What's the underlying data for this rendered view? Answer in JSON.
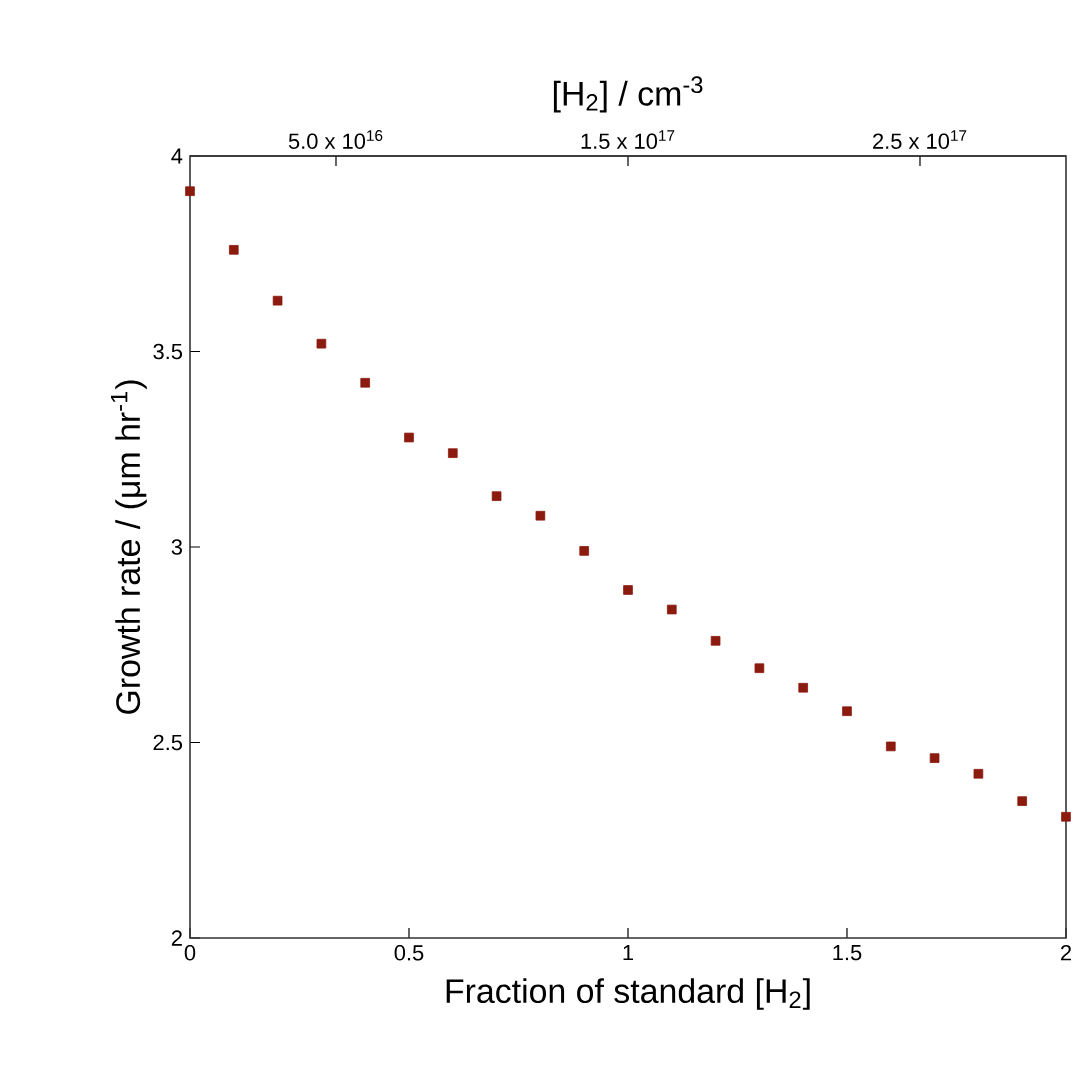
{
  "chart_data": {
    "type": "scatter",
    "xlabel": "Fraction of standard [H$_{2}$]",
    "ylabel": "Growth rate / (μm hr$^{-1}$)",
    "x2label": "[H$_{2}$] / cm$^{-3}$",
    "x": [
      0,
      0.1,
      0.2,
      0.3,
      0.4,
      0.5,
      0.6,
      0.7,
      0.8,
      0.9,
      1.0,
      1.1,
      1.2,
      1.3,
      1.4,
      1.5,
      1.6,
      1.7,
      1.8,
      1.9,
      2.0
    ],
    "values": [
      3.91,
      3.76,
      3.63,
      3.52,
      3.42,
      3.28,
      3.24,
      3.13,
      3.08,
      2.99,
      2.89,
      2.84,
      2.76,
      2.69,
      2.64,
      2.58,
      2.49,
      2.46,
      2.42,
      2.35,
      2.31
    ],
    "color": "#8b1a0f",
    "marker": "square",
    "xlim": [
      0,
      2
    ],
    "xticks": [
      0,
      0.5,
      1,
      1.5,
      2
    ],
    "ylim": [
      2,
      4
    ],
    "yticks": [
      2,
      2.5,
      3,
      3.5,
      4
    ],
    "x2lim": [
      0,
      3e+17
    ],
    "x2ticks": [
      {
        "value": 5e+16,
        "label": "5.0 x 10$^{16}$"
      },
      {
        "value": 1.5e+17,
        "label": "1.5 x 10$^{17}$"
      },
      {
        "value": 2.5e+17,
        "label": "2.5 x 10$^{17}$"
      }
    ]
  }
}
